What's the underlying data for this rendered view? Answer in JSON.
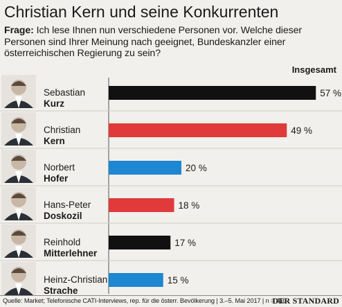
{
  "title": "Christian Kern und seine Konkurrenten",
  "question_label": "Frage:",
  "question_text": "Ich lese Ihnen nun verschiedene Personen vor. Welche dieser Personen sind Ihrer Meinung nach geeignet, Bundeskanzler einer österreichischen Regierung zu sein?",
  "column_header": "Insgesamt",
  "source": "Quelle: Market; Telefonische CATI-Interviews, rep. für die österr. Bevölkerung | 3.–5. Mai 2017 | n = 410",
  "brand": "DER STANDARD",
  "colors": {
    "black": "#111111",
    "red": "#e03b3a",
    "blue": "#1f87d1",
    "axis": "#555555"
  },
  "chart_data": {
    "type": "bar",
    "orientation": "horizontal",
    "unit": "%",
    "xlim": [
      0,
      60
    ],
    "categories": [
      {
        "first": "Sebastian",
        "last": "Kurz",
        "value": 57,
        "label": "57 %",
        "color": "black"
      },
      {
        "first": "Christian",
        "last": "Kern",
        "value": 49,
        "label": "49 %",
        "color": "red"
      },
      {
        "first": "Norbert",
        "last": "Hofer",
        "value": 20,
        "label": "20 %",
        "color": "blue"
      },
      {
        "first": "Hans-Peter",
        "last": "Doskozil",
        "value": 18,
        "label": "18 %",
        "color": "red"
      },
      {
        "first": "Reinhold",
        "last": "Mitterlehner",
        "value": 17,
        "label": "17 %",
        "color": "black"
      },
      {
        "first": "Heinz-Christian",
        "last": "Strache",
        "value": 15,
        "label": "15 %",
        "color": "blue"
      }
    ]
  }
}
